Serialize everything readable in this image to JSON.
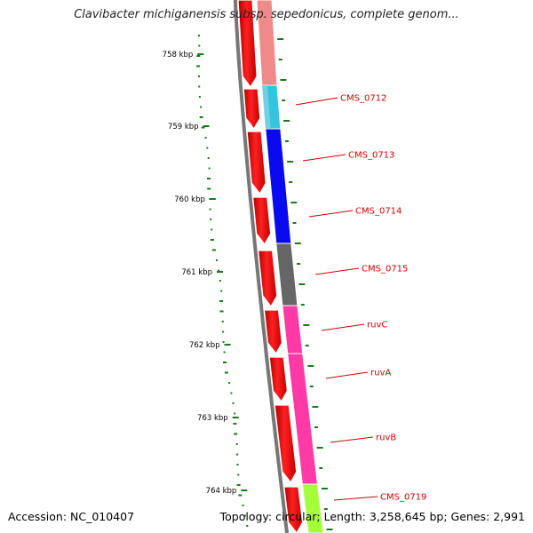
{
  "title": "Clavibacter michiganensis subsp. sepedonicus, complete genom...",
  "accession": "Accession: NC_010407",
  "summary": "Topology: circular; Length: 3,258,645 bp; Genes: 2,991",
  "ticks": [
    "758 kbp",
    "759 kbp",
    "760 kbp",
    "761 kbp",
    "762 kbp",
    "763 kbp",
    "764 kbp"
  ],
  "genes": [
    {
      "label": "",
      "color": "#f08a8a"
    },
    {
      "label": "CMS_0712",
      "color": "#33c4e0"
    },
    {
      "label": "CMS_0713",
      "color": "#0a0af0"
    },
    {
      "label": "CMS_0714",
      "color": "#0a0af0"
    },
    {
      "label": "CMS_0715",
      "color": "#666666"
    },
    {
      "label": "ruvC",
      "color": "#ff3aa6"
    },
    {
      "label": "ruvA",
      "color": "#ff3aa6"
    },
    {
      "label": "ruvB",
      "color": "#ff3aa6"
    },
    {
      "label": "CMS_0719",
      "color": "#a4ff3a"
    }
  ],
  "colors": {
    "cds": "#ee1111",
    "backbone": "#777777",
    "gc_plot": "#1a7a1a",
    "label": "#d00000"
  }
}
